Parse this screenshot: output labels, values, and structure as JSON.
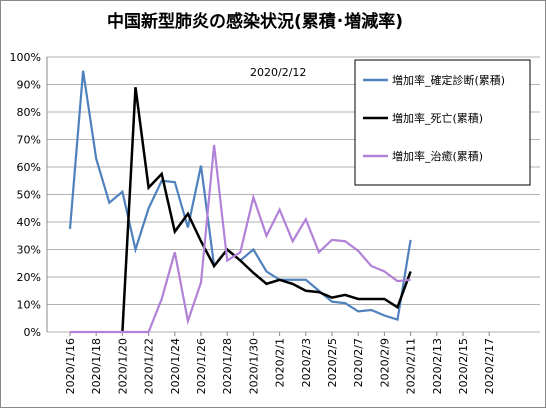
{
  "chart_data": {
    "type": "line",
    "title": "中国新型肺炎の感染状況(累積･増減率)",
    "annotation": "2020/2/12",
    "categories": [
      "2020/1/16",
      null,
      "2020/1/18",
      null,
      "2020/1/20",
      null,
      "2020/1/22",
      null,
      "2020/1/24",
      null,
      "2020/1/26",
      null,
      "2020/1/28",
      null,
      "2020/1/30",
      null,
      "2020/2/1",
      null,
      "2020/2/3",
      null,
      "2020/2/5",
      null,
      "2020/2/7",
      null,
      "2020/2/9",
      null,
      "2020/2/11",
      null,
      "2020/2/13",
      null,
      "2020/2/15",
      null,
      "2020/2/17",
      null,
      null
    ],
    "series": [
      {
        "name": "増加率_確定診断(累積)",
        "color": "#4f81bd",
        "values": [
          37.5,
          95,
          63,
          47,
          51,
          30,
          45,
          55,
          54.5,
          38,
          60.5,
          24,
          30,
          26,
          30,
          22,
          19,
          19,
          19,
          15,
          11,
          10.5,
          7.5,
          8,
          6,
          4.5,
          33.5,
          null,
          null,
          null,
          null,
          null,
          null,
          null,
          null
        ]
      },
      {
        "name": "増加率_死亡(累積)",
        "color": "#000000",
        "values": [
          null,
          null,
          null,
          null,
          0,
          89,
          52.5,
          57.5,
          36.5,
          43,
          33,
          24,
          30,
          26,
          21.5,
          17.5,
          19,
          17.5,
          15,
          14.5,
          12.5,
          13.5,
          12,
          12,
          12,
          9,
          22,
          null,
          null,
          null,
          null,
          null,
          null,
          null,
          null
        ]
      },
      {
        "name": "増加率_治癒(累積)",
        "color": "#b182d8",
        "values": [
          0,
          0,
          0,
          0,
          0,
          0,
          0,
          12,
          29,
          4,
          18,
          68,
          26,
          29,
          49,
          35,
          44.5,
          33,
          41,
          29,
          33.5,
          33,
          29.5,
          24,
          22,
          18.5,
          19,
          null,
          null,
          null,
          null,
          null,
          null,
          null,
          null
        ]
      }
    ],
    "ylim": [
      0,
      100
    ],
    "yticks": [
      {
        "value": 0,
        "label": "0%"
      },
      {
        "value": 10,
        "label": "10%"
      },
      {
        "value": 20,
        "label": "20%"
      },
      {
        "value": 30,
        "label": "30%"
      },
      {
        "value": 40,
        "label": "40%"
      },
      {
        "value": 50,
        "label": "50%"
      },
      {
        "value": 60,
        "label": "60%"
      },
      {
        "value": 70,
        "label": "70%"
      },
      {
        "value": 80,
        "label": "80%"
      },
      {
        "value": 90,
        "label": "90%"
      },
      {
        "value": 100,
        "label": "100%"
      }
    ],
    "grid": true
  }
}
